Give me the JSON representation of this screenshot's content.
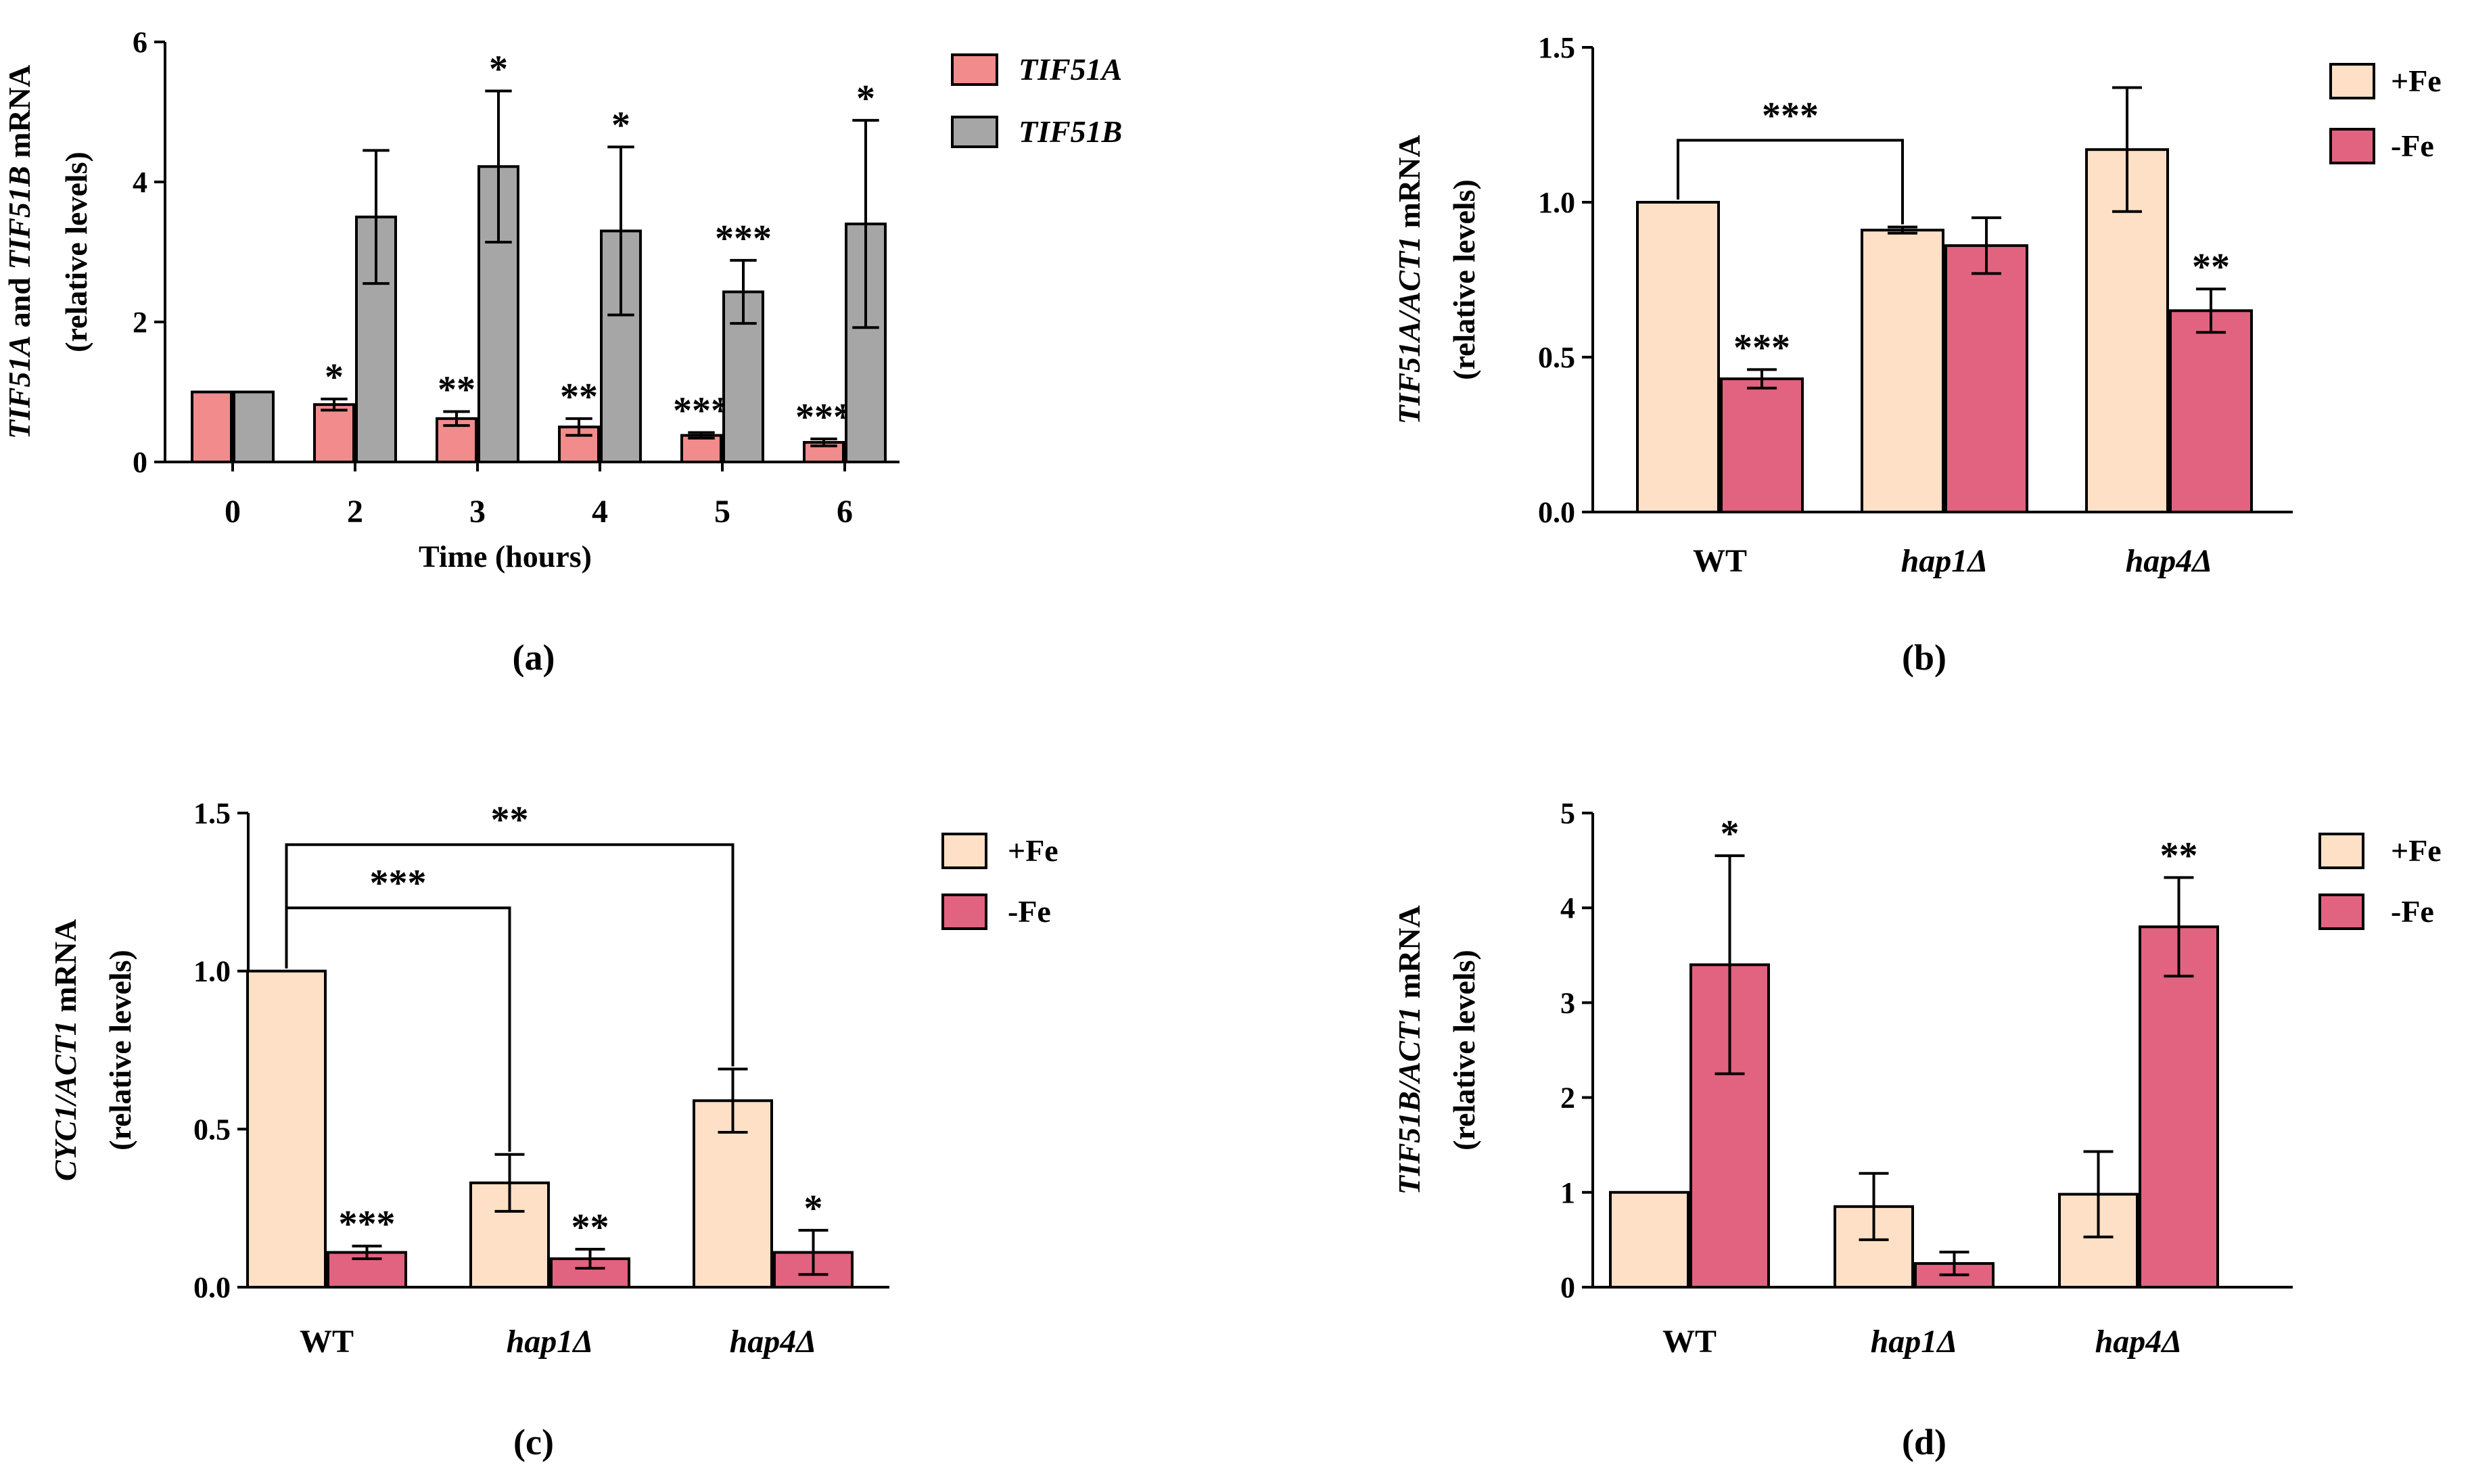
{
  "chart_data": [
    {
      "id": "a",
      "type": "bar",
      "panel_label": "(a)",
      "title": "",
      "categories": [
        "0",
        "2",
        "3",
        "4",
        "5",
        "6"
      ],
      "series": [
        {
          "name": "TIF51A",
          "color": "#f28b8b",
          "values": [
            1.0,
            0.82,
            0.62,
            0.5,
            0.38,
            0.28
          ],
          "errors": [
            0,
            0.08,
            0.1,
            0.12,
            0.04,
            0.05
          ],
          "sig": [
            "",
            "*",
            "**",
            "**",
            "***",
            "***"
          ]
        },
        {
          "name": "TIF51B",
          "color": "#a6a6a6",
          "values": [
            1.0,
            3.5,
            4.22,
            3.3,
            2.43,
            3.4
          ],
          "errors": [
            0,
            0.95,
            1.08,
            1.2,
            0.45,
            1.48
          ],
          "sig": [
            "",
            "",
            "*",
            "*",
            "***",
            "*"
          ]
        }
      ],
      "ylabel_parts": [
        {
          "text": "TIF51A",
          "italic": true
        },
        {
          "text": " and ",
          "italic": false
        },
        {
          "text": "TIF51B",
          "italic": true
        },
        {
          "text": " mRNA",
          "italic": false
        }
      ],
      "ylabel2": "(relative levels)",
      "xlabel": "Time (hours)",
      "ylim": [
        0,
        6
      ],
      "yticks": [
        "0",
        "2",
        "4",
        "6"
      ],
      "legend": [
        {
          "label": "TIF51A",
          "italic": true,
          "color": "#f28b8b"
        },
        {
          "label": "TIF51B",
          "italic": true,
          "color": "#a6a6a6"
        }
      ],
      "brackets": []
    },
    {
      "id": "b",
      "type": "bar",
      "panel_label": "(b)",
      "title": "",
      "categories": [
        "WT",
        "hap1Δ",
        "hap4Δ"
      ],
      "categories_italic": [
        false,
        true,
        true
      ],
      "series": [
        {
          "name": "+Fe",
          "color": "#fde0c5",
          "values": [
            1.0,
            0.91,
            1.17
          ],
          "errors": [
            0,
            0.01,
            0.2
          ],
          "sig": [
            "",
            "",
            ""
          ]
        },
        {
          "name": "-Fe",
          "color": "#e1637f",
          "values": [
            0.43,
            0.86,
            0.65
          ],
          "errors": [
            0.03,
            0.09,
            0.07
          ],
          "sig": [
            "***",
            "",
            "**"
          ]
        }
      ],
      "ylabel_parts": [
        {
          "text": "TIF51A/ACT1",
          "italic": true
        },
        {
          "text": " mRNA",
          "italic": false
        }
      ],
      "ylabel2": "(relative levels)",
      "xlabel": "",
      "ylim": [
        0,
        1.5
      ],
      "yticks": [
        "0.0",
        "0.5",
        "1.0",
        "1.5"
      ],
      "legend": [
        {
          "label": "+Fe",
          "italic": false,
          "color": "#fde0c5"
        },
        {
          "label": "-Fe",
          "italic": false,
          "color": "#e1637f"
        }
      ],
      "brackets": [
        {
          "from": 0,
          "to": 1,
          "level": 1.2,
          "label": "***"
        }
      ]
    },
    {
      "id": "c",
      "type": "bar",
      "panel_label": "(c)",
      "title": "",
      "categories": [
        "WT",
        "hap1Δ",
        "hap4Δ"
      ],
      "categories_italic": [
        false,
        true,
        true
      ],
      "series": [
        {
          "name": "+Fe",
          "color": "#fde0c5",
          "values": [
            1.0,
            0.33,
            0.59
          ],
          "errors": [
            0,
            0.09,
            0.1
          ],
          "sig": [
            "",
            "",
            ""
          ]
        },
        {
          "name": "-Fe",
          "color": "#e1637f",
          "values": [
            0.11,
            0.09,
            0.11
          ],
          "errors": [
            0.02,
            0.03,
            0.07
          ],
          "sig": [
            "***",
            "**",
            "*"
          ]
        }
      ],
      "ylabel_parts": [
        {
          "text": "CYC1/ACT1",
          "italic": true
        },
        {
          "text": " mRNA",
          "italic": false
        }
      ],
      "ylabel2": "(relative levels)",
      "xlabel": "",
      "ylim": [
        0,
        1.5
      ],
      "yticks": [
        "0.0",
        "0.5",
        "1.0",
        "1.5"
      ],
      "legend": [
        {
          "label": "+Fe",
          "italic": false,
          "color": "#fde0c5"
        },
        {
          "label": "-Fe",
          "italic": false,
          "color": "#e1637f"
        }
      ],
      "brackets": [
        {
          "from": 0,
          "to": 2,
          "level": 1.4,
          "label": "**"
        },
        {
          "from": 0,
          "to": 1,
          "level": 1.2,
          "label": "***"
        }
      ]
    },
    {
      "id": "d",
      "type": "bar",
      "panel_label": "(d)",
      "title": "",
      "categories": [
        "WT",
        "hap1Δ",
        "hap4Δ"
      ],
      "categories_italic": [
        false,
        true,
        true
      ],
      "series": [
        {
          "name": "+Fe",
          "color": "#fde0c5",
          "values": [
            1.0,
            0.85,
            0.98
          ],
          "errors": [
            0,
            0.35,
            0.45
          ],
          "sig": [
            "",
            "",
            ""
          ]
        },
        {
          "name": "-Fe",
          "color": "#e1637f",
          "values": [
            3.4,
            0.25,
            3.8
          ],
          "errors": [
            1.15,
            0.12,
            0.52
          ],
          "sig": [
            "*",
            "",
            "**"
          ]
        }
      ],
      "ylabel_parts": [
        {
          "text": "TIF51B/ACT1",
          "italic": true
        },
        {
          "text": " mRNA",
          "italic": false
        }
      ],
      "ylabel2": "(relative levels)",
      "xlabel": "",
      "ylim": [
        0,
        5
      ],
      "yticks": [
        "0",
        "1",
        "2",
        "3",
        "4",
        "5"
      ],
      "legend": [
        {
          "label": "+Fe",
          "italic": false,
          "color": "#fde0c5"
        },
        {
          "label": "-Fe",
          "italic": false,
          "color": "#e1637f"
        }
      ],
      "brackets": []
    }
  ]
}
